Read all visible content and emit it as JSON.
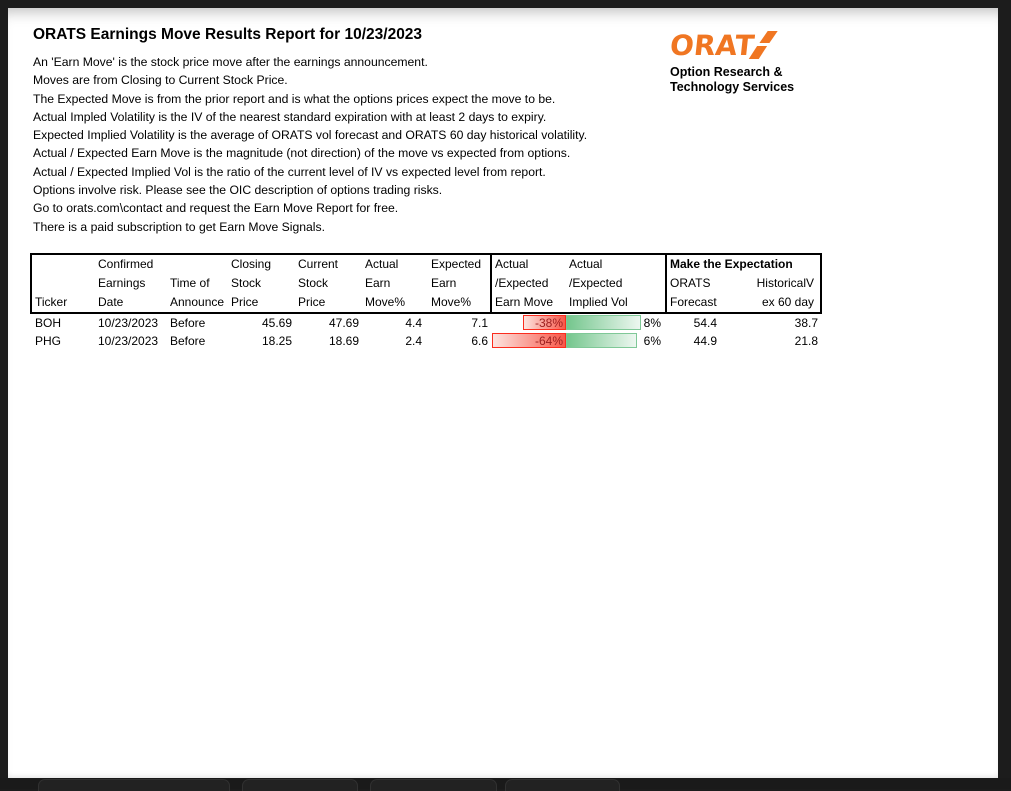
{
  "report": {
    "title": "ORATS Earnings Move Results Report for 10/23/2023",
    "intro_lines": [
      "An 'Earn Move' is the stock price move after the earnings announcement.",
      "Moves are from Closing to Current Stock Price.",
      "The Expected Move is from the prior report and is what the options prices expect the move to be.",
      "Actual Impled Volatility is the IV of the nearest standard expiration with at least 2 days to expiry.",
      "Expected Implied Volatility is the average of ORATS vol forecast and ORATS 60 day historical volatility.",
      "Actual / Expected Earn Move is the magnitude (not direction) of the move vs expected from options.",
      "Actual / Expected Implied Vol is the ratio of the current level of IV vs expected level from report.",
      "Options involve risk. Please see the OIC description of options trading risks.",
      "Go to orats.com\\contact and request the Earn Move Report for free.",
      "There is a paid subscription to get Earn Move Signals."
    ]
  },
  "logo": {
    "wordmark": "ORATS",
    "wordmark_text": "ORAT",
    "subtitle_line1": "Option Research &",
    "subtitle_line2": "Technology Services",
    "color": "#f07622"
  },
  "table": {
    "header": {
      "ticker": [
        "",
        "",
        "Ticker"
      ],
      "earnings_date": [
        "Confirmed",
        "Earnings",
        "Date"
      ],
      "time_of_announce": [
        "",
        "Time of",
        "Announce"
      ],
      "closing_price": [
        "Closing",
        "Stock",
        "Price"
      ],
      "current_price": [
        "Current",
        "Stock",
        "Price"
      ],
      "actual_earn_move": [
        "Actual",
        "Earn",
        "Move%"
      ],
      "expected_earn_move": [
        "Expected",
        "Earn",
        "Move%"
      ],
      "ae_earn_move": [
        "Actual",
        "/Expected",
        "Earn Move"
      ],
      "ae_implied_vol": [
        "Actual",
        "/Expected",
        "Implied Vol"
      ],
      "make_expectation_title": "Make the Expectation",
      "orats_forecast": [
        "ORATS",
        "Forecast"
      ],
      "historical_v": [
        "HistoricalV",
        "ex 60 day"
      ]
    },
    "rows": [
      {
        "ticker": "BOH",
        "earnings_date": "10/23/2023",
        "time_of_announce": "Before",
        "closing_price": "45.69",
        "current_price": "47.69",
        "actual_earn_move": "4.4",
        "expected_earn_move": "7.1",
        "ae_earn_move": "-38%",
        "ae_earn_move_bar_pct": 58,
        "ae_implied_vol": "8%",
        "ae_implied_vol_bar_pct": 76,
        "orats_forecast": "54.4",
        "historical_v": "38.7"
      },
      {
        "ticker": "PHG",
        "earnings_date": "10/23/2023",
        "time_of_announce": "Before",
        "closing_price": "18.25",
        "current_price": "18.69",
        "actual_earn_move": "2.4",
        "expected_earn_move": "6.6",
        "ae_earn_move": "-64%",
        "ae_earn_move_bar_pct": 100,
        "ae_implied_vol": "6%",
        "ae_implied_vol_bar_pct": 72,
        "orats_forecast": "44.9",
        "historical_v": "21.8"
      }
    ]
  },
  "colors": {
    "frame": "#1c1c1c",
    "page": "#ffffff",
    "logo_orange": "#f07622",
    "negative_bar_border": "#fb2c1e",
    "negative_bar_text": "#9c1f1f",
    "positive_bar_border": "#7fc897",
    "positive_bar_fill": "#74c68d"
  }
}
